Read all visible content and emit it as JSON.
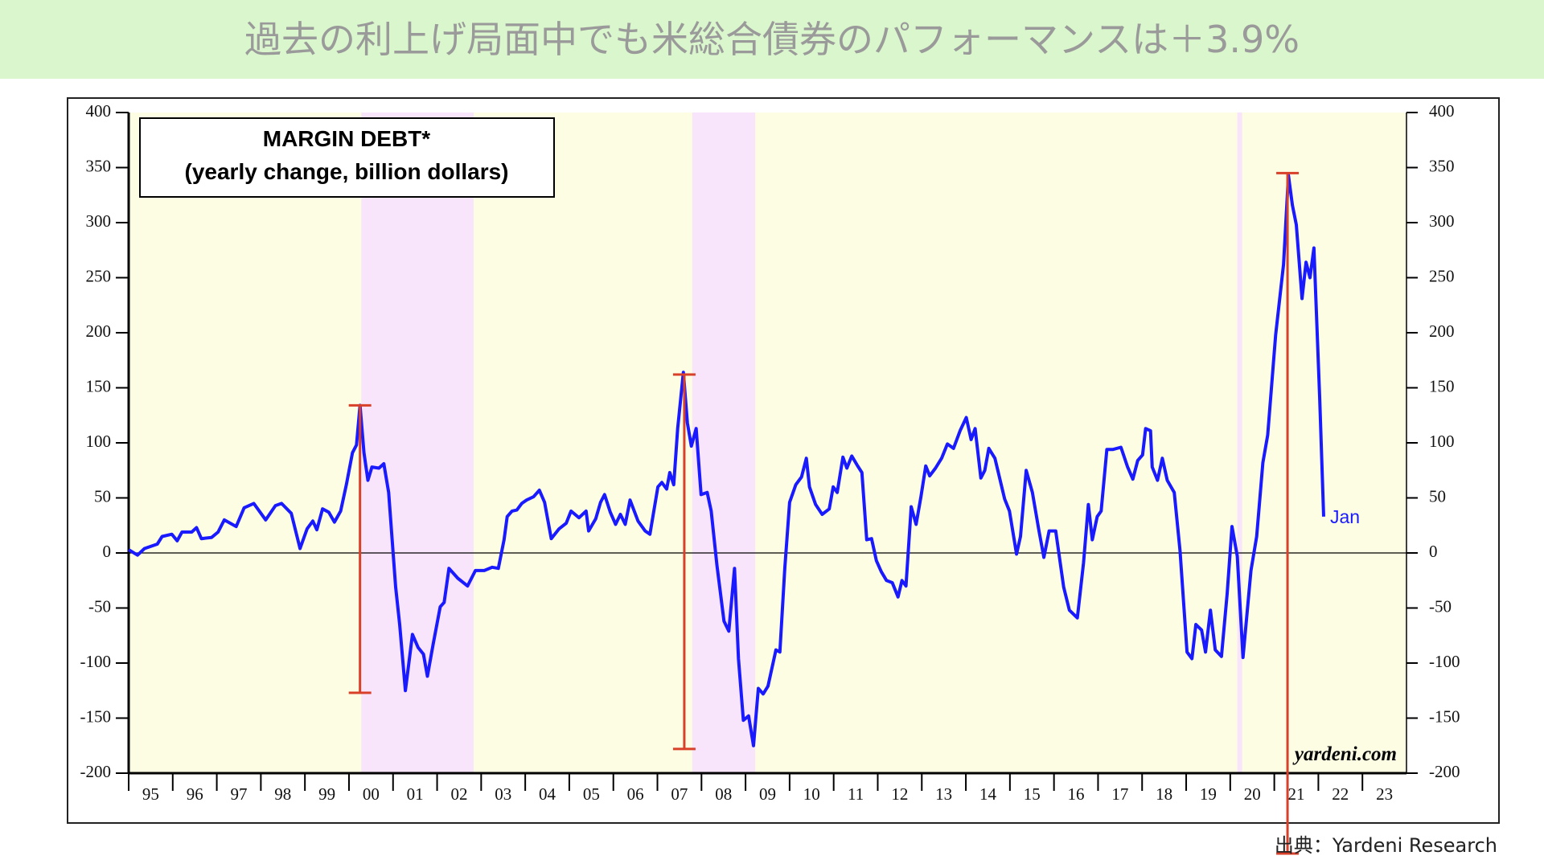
{
  "banner": {
    "title": "過去の利上げ局面中でも米総合債券のパフォーマンスは＋3.9%"
  },
  "chart_data": {
    "type": "line",
    "title": "MARGIN DEBT*",
    "subtitle": "(yearly change, billion dollars)",
    "watermark": "yardeni.com",
    "end_label": "Jan",
    "color": "#1a1aff",
    "background": "#fdfde3",
    "recession_color": "#f8e4fb",
    "recessions": [
      [
        2000.28,
        2002.83
      ],
      [
        2007.79,
        2009.22
      ],
      [
        2020.16,
        2020.27
      ]
    ],
    "annotation_color": "#d8402a",
    "annotations": [
      {
        "x": 2000.25,
        "low": -127,
        "high": 134
      },
      {
        "x": 2007.61,
        "low": -178,
        "high": 162
      },
      {
        "x": 2021.3,
        "low": -273,
        "high": 345
      }
    ],
    "xlim": [
      1995,
      2024
    ],
    "xticks": [
      {
        "value": 1995,
        "label": "95"
      },
      {
        "value": 1996,
        "label": "96"
      },
      {
        "value": 1997,
        "label": "97"
      },
      {
        "value": 1998,
        "label": "98"
      },
      {
        "value": 1999,
        "label": "99"
      },
      {
        "value": 2000,
        "label": "00"
      },
      {
        "value": 2001,
        "label": "01"
      },
      {
        "value": 2002,
        "label": "02"
      },
      {
        "value": 2003,
        "label": "03"
      },
      {
        "value": 2004,
        "label": "04"
      },
      {
        "value": 2005,
        "label": "05"
      },
      {
        "value": 2006,
        "label": "06"
      },
      {
        "value": 2007,
        "label": "07"
      },
      {
        "value": 2008,
        "label": "08"
      },
      {
        "value": 2009,
        "label": "09"
      },
      {
        "value": 2010,
        "label": "10"
      },
      {
        "value": 2011,
        "label": "11"
      },
      {
        "value": 2012,
        "label": "12"
      },
      {
        "value": 2013,
        "label": "13"
      },
      {
        "value": 2014,
        "label": "14"
      },
      {
        "value": 2015,
        "label": "15"
      },
      {
        "value": 2016,
        "label": "16"
      },
      {
        "value": 2017,
        "label": "17"
      },
      {
        "value": 2018,
        "label": "18"
      },
      {
        "value": 2019,
        "label": "19"
      },
      {
        "value": 2020,
        "label": "20"
      },
      {
        "value": 2021,
        "label": "21"
      },
      {
        "value": 2022,
        "label": "22"
      },
      {
        "value": 2023,
        "label": "23"
      }
    ],
    "ylim": [
      -200,
      400
    ],
    "yticks": [
      -200,
      -150,
      -100,
      -50,
      0,
      50,
      100,
      150,
      200,
      250,
      300,
      350,
      400
    ],
    "x": [
      1995.0,
      1995.2,
      1995.36,
      1995.65,
      1995.76,
      1995.98,
      1996.1,
      1996.21,
      1996.43,
      1996.54,
      1996.65,
      1996.88,
      1997.03,
      1997.17,
      1997.44,
      1997.62,
      1997.84,
      1998.11,
      1998.33,
      1998.47,
      1998.69,
      1998.89,
      1999.05,
      1999.18,
      1999.27,
      1999.4,
      1999.54,
      1999.67,
      1999.81,
      1999.94,
      2000.08,
      2000.17,
      2000.25,
      2000.34,
      2000.43,
      2000.52,
      2000.68,
      2000.79,
      2000.9,
      2001.06,
      2001.15,
      2001.28,
      2001.44,
      2001.57,
      2001.69,
      2001.78,
      2001.91,
      2002.07,
      2002.16,
      2002.27,
      2002.47,
      2002.69,
      2002.87,
      2003.07,
      2003.25,
      2003.39,
      2003.52,
      2003.59,
      2003.7,
      2003.81,
      2003.92,
      2004.03,
      2004.19,
      2004.32,
      2004.44,
      2004.59,
      2004.77,
      2004.93,
      2005.04,
      2005.22,
      2005.38,
      2005.44,
      2005.6,
      2005.71,
      2005.8,
      2005.93,
      2006.05,
      2006.16,
      2006.27,
      2006.38,
      2006.56,
      2006.72,
      2006.83,
      2007.01,
      2007.1,
      2007.21,
      2007.28,
      2007.37,
      2007.46,
      2007.59,
      2007.68,
      2007.77,
      2007.88,
      2007.99,
      2008.13,
      2008.22,
      2008.35,
      2008.51,
      2008.62,
      2008.75,
      2008.84,
      2008.95,
      2009.07,
      2009.18,
      2009.29,
      2009.4,
      2009.51,
      2009.69,
      2009.78,
      2009.89,
      2010.0,
      2010.14,
      2010.27,
      2010.38,
      2010.45,
      2010.59,
      2010.74,
      2010.9,
      2010.99,
      2011.08,
      2011.21,
      2011.3,
      2011.41,
      2011.53,
      2011.64,
      2011.75,
      2011.86,
      2011.97,
      2012.08,
      2012.2,
      2012.33,
      2012.46,
      2012.55,
      2012.64,
      2012.76,
      2012.87,
      2012.98,
      2013.09,
      2013.18,
      2013.31,
      2013.45,
      2013.58,
      2013.72,
      2013.87,
      2014.01,
      2014.12,
      2014.21,
      2014.34,
      2014.43,
      2014.52,
      2014.66,
      2014.88,
      2014.99,
      2015.15,
      2015.24,
      2015.37,
      2015.51,
      2015.66,
      2015.77,
      2015.89,
      2016.04,
      2016.22,
      2016.35,
      2016.53,
      2016.67,
      2016.78,
      2016.87,
      2016.98,
      2017.07,
      2017.2,
      2017.34,
      2017.52,
      2017.67,
      2017.79,
      2017.9,
      2018.01,
      2018.08,
      2018.19,
      2018.23,
      2018.35,
      2018.46,
      2018.57,
      2018.73,
      2018.86,
      2019.02,
      2019.13,
      2019.22,
      2019.35,
      2019.44,
      2019.55,
      2019.66,
      2019.8,
      2019.93,
      2020.04,
      2020.16,
      2020.29,
      2020.47,
      2020.6,
      2020.74,
      2020.85,
      2021.03,
      2021.21,
      2021.32,
      2021.41,
      2021.5,
      2021.63,
      2021.72,
      2021.81,
      2021.9,
      2022.03,
      2022.12
    ],
    "values": [
      3,
      -2,
      4,
      8,
      15,
      17,
      11,
      19,
      19,
      23,
      13,
      14,
      19,
      30,
      24,
      41,
      45,
      30,
      43,
      45,
      36,
      4,
      22,
      29,
      21,
      40,
      37,
      28,
      38,
      62,
      91,
      98,
      134,
      91,
      66,
      78,
      77,
      81,
      55,
      -31,
      -65,
      -125,
      -74,
      -86,
      -92,
      -112,
      -83,
      -49,
      -45,
      -14,
      -23,
      -30,
      -16,
      -16,
      -13,
      -14,
      12,
      33,
      38,
      39,
      45,
      48,
      51,
      57,
      46,
      13,
      22,
      27,
      38,
      32,
      38,
      20,
      31,
      46,
      53,
      37,
      26,
      35,
      26,
      48,
      29,
      20,
      17,
      60,
      64,
      58,
      73,
      62,
      113,
      164,
      118,
      97,
      113,
      53,
      55,
      38,
      -11,
      -62,
      -71,
      -14,
      -96,
      -152,
      -148,
      -175,
      -123,
      -128,
      -121,
      -88,
      -90,
      -14,
      46,
      62,
      69,
      86,
      60,
      44,
      35,
      40,
      60,
      55,
      87,
      77,
      88,
      80,
      73,
      12,
      13,
      -7,
      -17,
      -25,
      -27,
      -40,
      -25,
      -30,
      42,
      26,
      51,
      79,
      70,
      77,
      86,
      99,
      95,
      111,
      123,
      103,
      113,
      68,
      75,
      95,
      86,
      49,
      38,
      -1,
      15,
      75,
      55,
      20,
      -4,
      20,
      20,
      -31,
      -52,
      -59,
      -9,
      44,
      12,
      33,
      38,
      94,
      94,
      96,
      78,
      67,
      84,
      89,
      113,
      111,
      78,
      66,
      86,
      66,
      55,
      2,
      -90,
      -96,
      -65,
      -70,
      -90,
      -52,
      -88,
      -94,
      -37,
      24,
      -3,
      -95,
      -16,
      15,
      82,
      107,
      198,
      262,
      343,
      316,
      298,
      231,
      264,
      250,
      277,
      140,
      33
    ]
  },
  "source": "出典：Yardeni Research"
}
